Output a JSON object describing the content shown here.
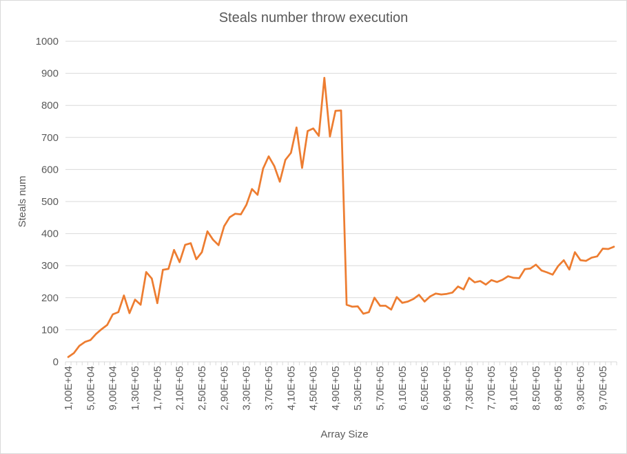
{
  "chart_data": {
    "type": "line",
    "title": "Steals number throw execution",
    "xlabel": "Array Size",
    "ylabel": "Steals num",
    "ylim": [
      0,
      1000
    ],
    "yticks": [
      "0",
      "100",
      "200",
      "300",
      "400",
      "500",
      "600",
      "700",
      "800",
      "900",
      "1000"
    ],
    "grid": true,
    "legend": "none",
    "x_tick_labels": [
      "1,00E+04",
      "5,00E+04",
      "9,00E+04",
      "1,30E+05",
      "1,70E+05",
      "2,10E+05",
      "2,50E+05",
      "2,90E+05",
      "3,30E+05",
      "3,70E+05",
      "4,10E+05",
      "4,50E+05",
      "4,90E+05",
      "5,30E+05",
      "5,70E+05",
      "6,10E+05",
      "6,50E+05",
      "6,90E+05",
      "7,30E+05",
      "7,70E+05",
      "8,10E+05",
      "8,50E+05",
      "8,90E+05",
      "9,30E+05",
      "9,70E+05"
    ],
    "x_tick_every": 4,
    "series": [
      {
        "color": "#ED7D31",
        "values": [
          15,
          27,
          50,
          62,
          68,
          87,
          102,
          115,
          148,
          155,
          207,
          152,
          194,
          178,
          280,
          260,
          183,
          287,
          290,
          349,
          311,
          365,
          370,
          320,
          342,
          407,
          381,
          364,
          423,
          451,
          462,
          460,
          490,
          539,
          521,
          603,
          641,
          611,
          562,
          630,
          652,
          731,
          605,
          720,
          728,
          705,
          886,
          703,
          783,
          784,
          178,
          172,
          173,
          150,
          155,
          200,
          175,
          175,
          163,
          202,
          184,
          188,
          196,
          209,
          188,
          204,
          213,
          210,
          212,
          216,
          235,
          226,
          262,
          248,
          252,
          241,
          255,
          249,
          256,
          267,
          262,
          261,
          289,
          291,
          303,
          285,
          279,
          272,
          299,
          317,
          288,
          342,
          317,
          315,
          325,
          329,
          353,
          352,
          359
        ]
      }
    ]
  }
}
